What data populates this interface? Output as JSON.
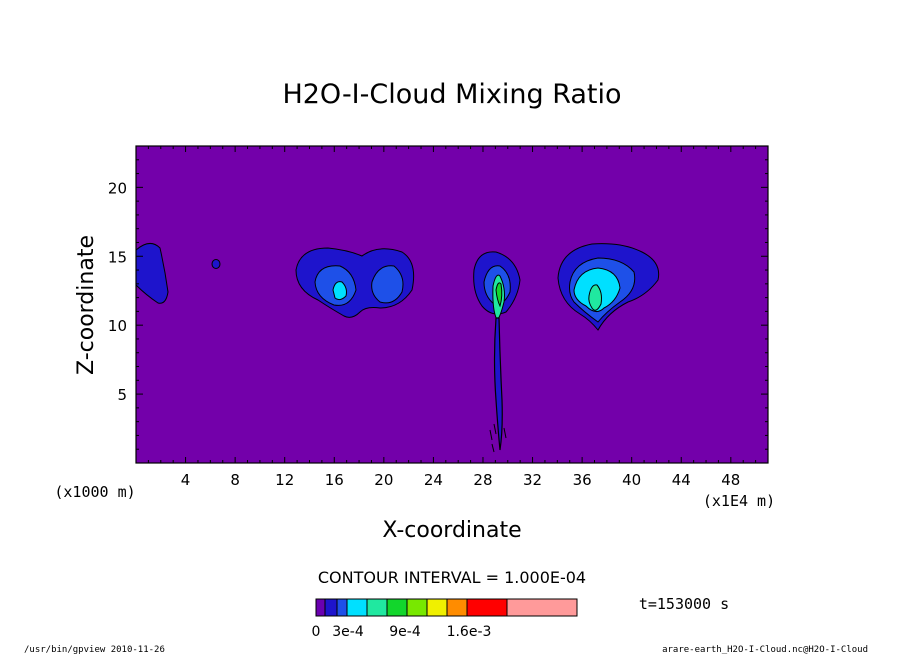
{
  "chart_data": {
    "type": "contour",
    "title": "H2O-I-Cloud Mixing Ratio",
    "xlabel": "X-coordinate",
    "ylabel": "Z-coordinate",
    "x_unit_label": "(x1E4 m)",
    "y_unit_label": "(x1000 m)",
    "xlim": [
      0,
      51
    ],
    "ylim": [
      0,
      23
    ],
    "x_ticks": [
      4,
      8,
      12,
      16,
      20,
      24,
      28,
      32,
      36,
      40,
      44,
      48
    ],
    "y_ticks": [
      5,
      10,
      15,
      20
    ],
    "contour_interval_label": "CONTOUR INTERVAL = 1.000E-04",
    "time_label": "t=153000 s",
    "colorbar": {
      "colors": [
        "#6a00b0",
        "#1e14cc",
        "#1e50e8",
        "#00e0ff",
        "#20e8a0",
        "#12d62c",
        "#78e800",
        "#f0f000",
        "#ff8c00",
        "#ff0000",
        "#ff9a9a"
      ],
      "labels": [
        "0",
        "3e-4",
        "9e-4",
        "1.6e-3"
      ]
    },
    "cloud_blobs": [
      {
        "x_center": 1.3,
        "z_center": 14.0,
        "max_level": "3e-4"
      },
      {
        "x_center": 6.4,
        "z_center": 14.3,
        "max_level": "1e-4"
      },
      {
        "x_center": 18.0,
        "z_center": 13.3,
        "max_level": "5e-4"
      },
      {
        "x_center": 29.3,
        "z_center": 12.0,
        "max_level": "7e-4"
      },
      {
        "x_center": 38.0,
        "z_center": 12.8,
        "max_level": "6e-4"
      }
    ]
  },
  "footer": {
    "left": "/usr/bin/gpview  2010-11-26",
    "right": "arare-earth_H2O-I-Cloud.nc@H2O-I-Cloud"
  }
}
